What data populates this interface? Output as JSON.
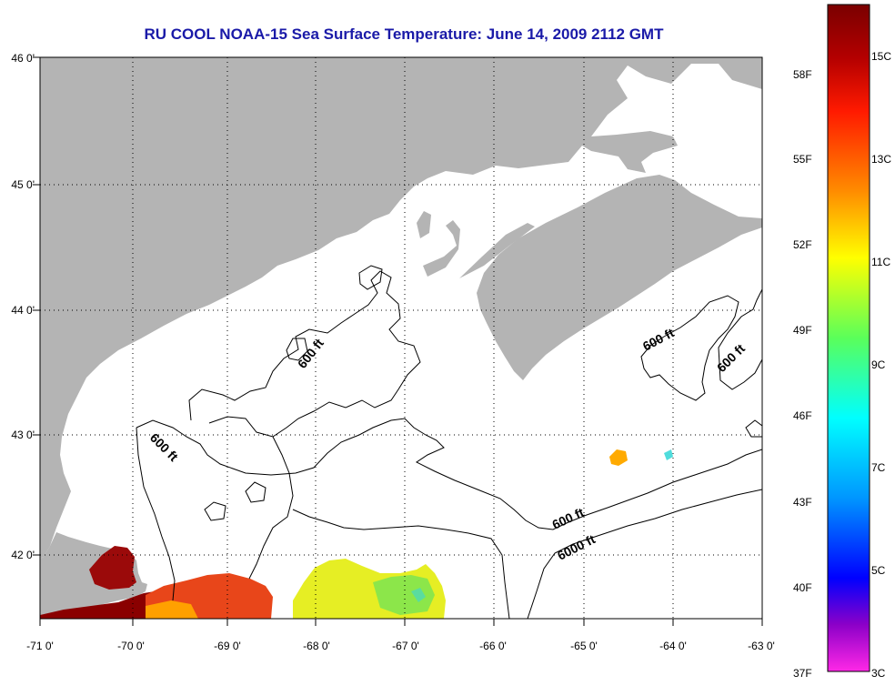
{
  "title": "RU COOL  NOAA-15  Sea Surface Temperature:  June 14, 2009 2112 GMT",
  "lat_ticks": [
    "46 0'",
    "45 0'",
    "44 0'",
    "43 0'",
    "42 0'"
  ],
  "lon_ticks": [
    "-71 0'",
    "-70 0'",
    "-69 0'",
    "-68 0'",
    "-67 0'",
    "-66 0'",
    "-65 0'",
    "-64 0'",
    "-63 0'"
  ],
  "colorbar": {
    "fahrenheit": [
      "58F",
      "55F",
      "52F",
      "49F",
      "46F",
      "43F",
      "40F",
      "37F"
    ],
    "celsius": [
      "15C",
      "13C",
      "11C",
      "9C",
      "7C",
      "5C",
      "3C"
    ],
    "colors": [
      "#7a0000",
      "#ff1a00",
      "#ff8c00",
      "#ffff00",
      "#5aff5a",
      "#00ffff",
      "#0096ff",
      "#0000ff",
      "#8c00c8",
      "#ff28e6"
    ]
  },
  "contours": [
    "600 ft",
    "600 ft",
    "600 ft",
    "600 ft",
    "600 ft",
    "6000 ft"
  ],
  "colors": {
    "land": "#b4b4b4",
    "ocean": "#ffffff",
    "title": "#1a1aa8"
  }
}
